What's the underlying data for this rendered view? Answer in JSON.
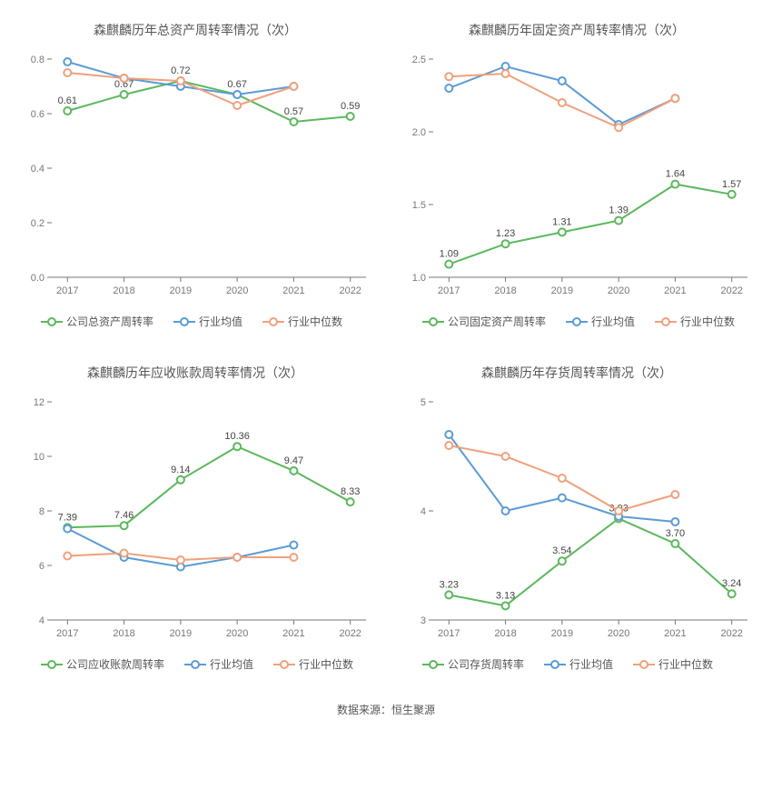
{
  "source_note": "数据来源：恒生聚源",
  "global": {
    "colors": {
      "company": "#5cb85c",
      "industry_avg": "#5b9bd5",
      "industry_median": "#f0a07c",
      "axis": "#777777",
      "text": "#555555",
      "label": "#444444",
      "background": "#ffffff"
    },
    "font_family": "Microsoft YaHei",
    "marker": {
      "shape": "circle",
      "radius": 4,
      "fill": "#ffffff",
      "stroke_width": 2
    },
    "line_width": 2,
    "axis_fontsize": 11,
    "title_fontsize": 14,
    "label_fontsize": 11,
    "legend_fontsize": 12
  },
  "charts": [
    {
      "id": "total_asset_turnover",
      "title": "森麒麟历年总资产周转率情况（次）",
      "type": "line",
      "categories": [
        "2017",
        "2018",
        "2019",
        "2020",
        "2021",
        "2022"
      ],
      "ylim": [
        0,
        0.8
      ],
      "ytick_step": 0.2,
      "y_decimals": 1,
      "series": [
        {
          "key": "company",
          "name": "公司总资产周转率",
          "color": "#5cb85c",
          "values": [
            0.61,
            0.67,
            0.72,
            0.67,
            0.57,
            0.59
          ],
          "show_labels": true,
          "label_values": [
            "0.61",
            "0.67",
            "0.72",
            "0.67",
            "0.57",
            "0.59"
          ],
          "last_has_data": true
        },
        {
          "key": "industry_avg",
          "name": "行业均值",
          "color": "#5b9bd5",
          "values": [
            0.79,
            0.73,
            0.7,
            0.67,
            0.7,
            null
          ],
          "show_labels": false,
          "last_has_data": false
        },
        {
          "key": "industry_median",
          "name": "行业中位数",
          "color": "#f0a07c",
          "values": [
            0.75,
            0.73,
            0.72,
            0.63,
            0.7,
            null
          ],
          "show_labels": false,
          "last_has_data": false
        }
      ]
    },
    {
      "id": "fixed_asset_turnover",
      "title": "森麒麟历年固定资产周转率情况（次）",
      "type": "line",
      "categories": [
        "2017",
        "2018",
        "2019",
        "2020",
        "2021",
        "2022"
      ],
      "ylim": [
        1,
        2.5
      ],
      "ytick_step": 0.5,
      "y_decimals": 1,
      "series": [
        {
          "key": "company",
          "name": "公司固定资产周转率",
          "color": "#5cb85c",
          "values": [
            1.09,
            1.23,
            1.31,
            1.39,
            1.64,
            1.57
          ],
          "show_labels": true,
          "label_values": [
            "1.09",
            "1.23",
            "1.31",
            "1.39",
            "1.64",
            "1.57"
          ],
          "last_has_data": true
        },
        {
          "key": "industry_avg",
          "name": "行业均值",
          "color": "#5b9bd5",
          "values": [
            2.3,
            2.45,
            2.35,
            2.05,
            2.23,
            null
          ],
          "show_labels": false,
          "last_has_data": false
        },
        {
          "key": "industry_median",
          "name": "行业中位数",
          "color": "#f0a07c",
          "values": [
            2.38,
            2.4,
            2.2,
            2.03,
            2.23,
            null
          ],
          "show_labels": false,
          "last_has_data": false
        }
      ]
    },
    {
      "id": "receivables_turnover",
      "title": "森麒麟历年应收账款周转率情况（次）",
      "type": "line",
      "categories": [
        "2017",
        "2018",
        "2019",
        "2020",
        "2021",
        "2022"
      ],
      "ylim": [
        4,
        12
      ],
      "ytick_step": 2,
      "y_decimals": 0,
      "series": [
        {
          "key": "company",
          "name": "公司应收账款周转率",
          "color": "#5cb85c",
          "values": [
            7.39,
            7.46,
            9.14,
            10.36,
            9.47,
            8.33
          ],
          "show_labels": true,
          "label_values": [
            "7.39",
            "7.46",
            "9.14",
            "10.36",
            "9.47",
            "8.33"
          ],
          "last_has_data": true
        },
        {
          "key": "industry_avg",
          "name": "行业均值",
          "color": "#5b9bd5",
          "values": [
            7.35,
            6.3,
            5.95,
            6.3,
            6.75,
            null
          ],
          "show_labels": false,
          "last_has_data": false
        },
        {
          "key": "industry_median",
          "name": "行业中位数",
          "color": "#f0a07c",
          "values": [
            6.35,
            6.45,
            6.2,
            6.3,
            6.3,
            null
          ],
          "show_labels": false,
          "last_has_data": false
        }
      ]
    },
    {
      "id": "inventory_turnover",
      "title": "森麒麟历年存货周转率情况（次）",
      "type": "line",
      "categories": [
        "2017",
        "2018",
        "2019",
        "2020",
        "2021",
        "2022"
      ],
      "ylim": [
        3,
        5
      ],
      "ytick_step": 1,
      "y_decimals": 0,
      "series": [
        {
          "key": "company",
          "name": "公司存货周转率",
          "color": "#5cb85c",
          "values": [
            3.23,
            3.13,
            3.54,
            3.93,
            3.7,
            3.24
          ],
          "show_labels": true,
          "label_values": [
            "3.23",
            "3.13",
            "3.54",
            "3.93",
            "3.70",
            "3.24"
          ],
          "last_has_data": true
        },
        {
          "key": "industry_avg",
          "name": "行业均值",
          "color": "#5b9bd5",
          "values": [
            4.7,
            4.0,
            4.12,
            3.95,
            3.9,
            null
          ],
          "show_labels": false,
          "last_has_data": false
        },
        {
          "key": "industry_median",
          "name": "行业中位数",
          "color": "#f0a07c",
          "values": [
            4.6,
            4.5,
            4.3,
            4.0,
            4.15,
            null
          ],
          "show_labels": false,
          "last_has_data": false
        }
      ]
    }
  ]
}
